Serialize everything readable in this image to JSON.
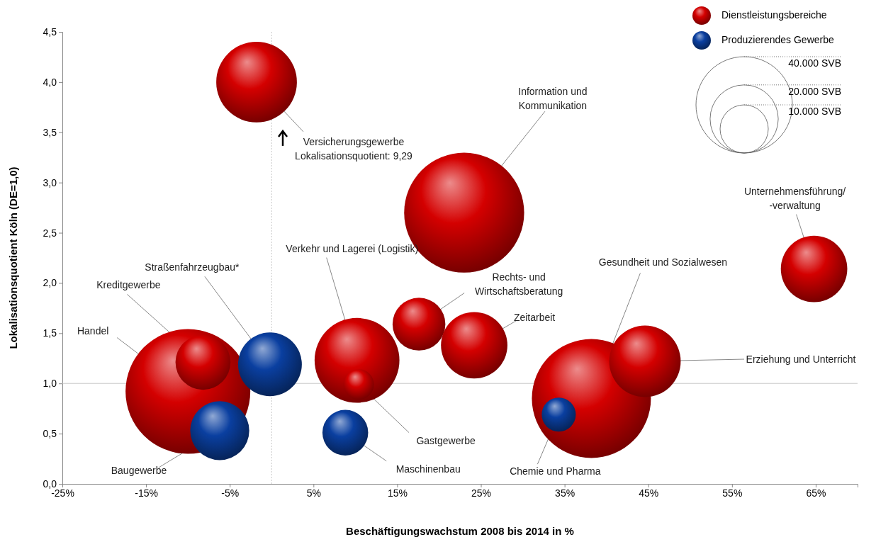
{
  "chart_data": {
    "type": "bubble",
    "xlabel": "Beschäftigungswachstum 2008 bis 2014 in %",
    "ylabel": "Lokalisationsquotient Köln (DE=1,0)",
    "xlim": [
      -25,
      70
    ],
    "ylim": [
      0,
      4.5
    ],
    "xticks": [
      {
        "value": -25,
        "label": "-25%"
      },
      {
        "value": -15,
        "label": "-15%"
      },
      {
        "value": -5,
        "label": "-5%"
      },
      {
        "value": 5,
        "label": "5%"
      },
      {
        "value": 15,
        "label": "15%"
      },
      {
        "value": 25,
        "label": "25%"
      },
      {
        "value": 35,
        "label": "35%"
      },
      {
        "value": 45,
        "label": "45%"
      },
      {
        "value": 55,
        "label": "55%"
      },
      {
        "value": 65,
        "label": "65%"
      }
    ],
    "yticks": [
      {
        "value": 0,
        "label": "0,0"
      },
      {
        "value": 0.5,
        "label": "0,5"
      },
      {
        "value": 1,
        "label": "1,0"
      },
      {
        "value": 1.5,
        "label": "1,5"
      },
      {
        "value": 2,
        "label": "2,0"
      },
      {
        "value": 2.5,
        "label": "2,5"
      },
      {
        "value": 3,
        "label": "3,0"
      },
      {
        "value": 3.5,
        "label": "3,5"
      },
      {
        "value": 4,
        "label": "4,0"
      },
      {
        "value": 4.5,
        "label": "4,5"
      }
    ],
    "grid": false,
    "legend": "top right",
    "size_legend": [
      {
        "value": 40000,
        "label": "40.000 SVB"
      },
      {
        "value": 20000,
        "label": "20.000 SVB"
      },
      {
        "value": 10000,
        "label": "10.000 SVB"
      }
    ],
    "ref_lines": [
      {
        "axis": "x",
        "value": 0,
        "color": "#c8c8c8",
        "line_style": "dotted"
      },
      {
        "axis": "y",
        "value": 1,
        "color": "#c8c8c8",
        "line_style": "solid"
      }
    ],
    "series": [
      {
        "name": "Dienstleistungsbereiche",
        "color": "#d40000",
        "x": [
          -1.8,
          23,
          64.8,
          -10,
          -8.2,
          10.2,
          10.4,
          17.6,
          24.2,
          38.2,
          44.6
        ],
        "values": [
          4.0,
          2.7,
          2.14,
          0.92,
          1.21,
          1.23,
          0.99,
          1.59,
          1.38,
          0.85,
          1.22
        ],
        "sizes": [
          28000,
          62000,
          19000,
          67000,
          13000,
          31000,
          4000,
          12000,
          19000,
          61000,
          22000
        ]
      },
      {
        "name": "Produzierendes Gewerbe",
        "color": "#0a3fa0",
        "x": [
          -0.2,
          -6.2,
          8.8,
          34.3
        ],
        "values": [
          1.19,
          0.53,
          0.51,
          0.69
        ],
        "sizes": [
          17500,
          15000,
          9000,
          5000
        ]
      }
    ],
    "annotations": [
      {
        "text": "Versicherungsgewerbe\nLokalisationsquotient: 9,29",
        "x": -1.8,
        "y": 4.0
      },
      {
        "text": "Information und\nKommunikation",
        "x": 23,
        "y": 2.7
      },
      {
        "text": "Unternehmensführung/\n-verwaltung",
        "x": 64.8,
        "y": 2.14
      },
      {
        "text": "Handel",
        "x": -10,
        "y": 0.92
      },
      {
        "text": "Kreditgewerbe",
        "x": -8.2,
        "y": 1.21
      },
      {
        "text": "Straßenfahrzeugbau*",
        "x": -0.2,
        "y": 1.19
      },
      {
        "text": "Baugewerbe",
        "x": -6.2,
        "y": 0.53
      },
      {
        "text": "Verkehr und Lagerei (Logistik)",
        "x": 10.2,
        "y": 1.23
      },
      {
        "text": "Gastgewerbe",
        "x": 10.4,
        "y": 0.99
      },
      {
        "text": "Maschinenbau",
        "x": 8.8,
        "y": 0.51
      },
      {
        "text": "Rechts- und\nWirtschaftsberatung",
        "x": 17.6,
        "y": 1.59
      },
      {
        "text": "Zeitarbeit",
        "x": 24.2,
        "y": 1.38
      },
      {
        "text": "Gesundheit und Sozialwesen",
        "x": 38.2,
        "y": 0.85
      },
      {
        "text": "Erziehung und Unterricht",
        "x": 44.6,
        "y": 1.22
      },
      {
        "text": "Chemie und Pharma",
        "x": 34.3,
        "y": 0.69
      }
    ]
  }
}
